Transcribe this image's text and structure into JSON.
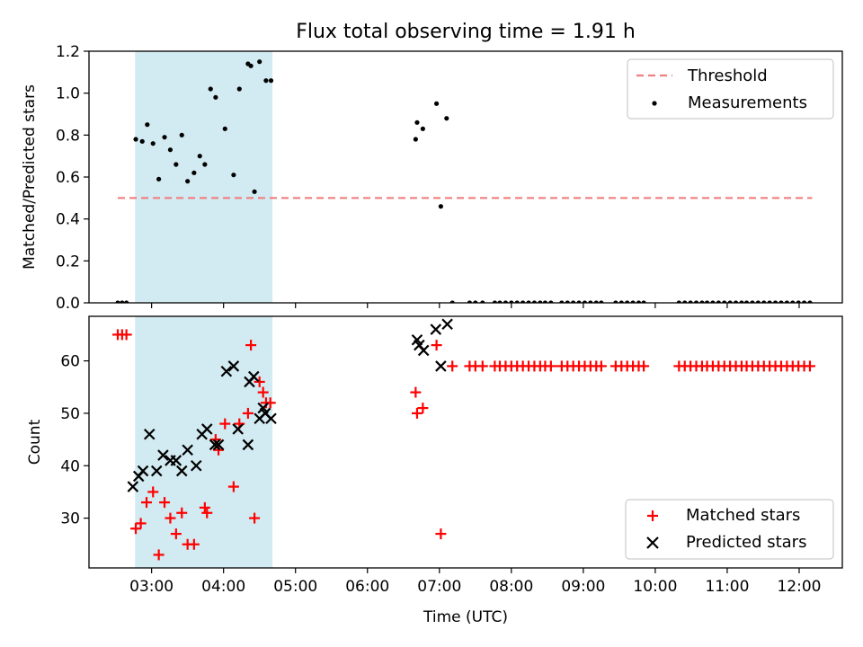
{
  "title": "Flux total observing time = 1.91 h",
  "xlabel": "Time (UTC)",
  "colors": {
    "span": "#add8e6",
    "threshold": "#f08080",
    "measurement": "#000000",
    "matched": "#ff0000",
    "predicted": "#000000"
  },
  "chart_data": [
    {
      "type": "scatter",
      "ylabel": "Matched/Predicted stars",
      "ylim": [
        0,
        1.2
      ],
      "yticks": [
        "0.0",
        "0.2",
        "0.4",
        "0.6",
        "0.8",
        "1.0",
        "1.2"
      ],
      "xlim_hours": [
        2.13,
        12.6
      ],
      "grid": false,
      "legend_position": "upper right",
      "shaded_span_hours": [
        2.77,
        4.68
      ],
      "threshold": {
        "name": "Threshold",
        "value": 0.5,
        "x_hours": [
          2.53,
          12.18
        ]
      },
      "series": [
        {
          "name": "Measurements",
          "x_hours": [
            2.53,
            2.59,
            2.65,
            2.78,
            2.87,
            2.94,
            3.02,
            3.1,
            3.18,
            3.26,
            3.34,
            3.42,
            3.5,
            3.59,
            3.67,
            3.74,
            3.82,
            3.89,
            4.02,
            4.14,
            4.22,
            4.34,
            4.38,
            4.43,
            4.5,
            4.59,
            4.66,
            6.67,
            6.69,
            6.77,
            6.96,
            7.02,
            7.1,
            7.18,
            7.42,
            7.5,
            7.6,
            7.77,
            7.84,
            7.92,
            8.0,
            8.08,
            8.16,
            8.24,
            8.32,
            8.4,
            8.47,
            8.55,
            8.7,
            8.78,
            8.86,
            8.94,
            9.02,
            9.1,
            9.18,
            9.25,
            9.45,
            9.53,
            9.61,
            9.69,
            9.77,
            9.84,
            10.33,
            10.41,
            10.49,
            10.57,
            10.65,
            10.72,
            10.8,
            10.88,
            10.96,
            11.04,
            11.12,
            11.2,
            11.27,
            11.35,
            11.43,
            11.51,
            11.59,
            11.67,
            11.75,
            11.83,
            11.91,
            11.99,
            12.07,
            12.15
          ],
          "y": [
            0,
            0,
            0,
            0.78,
            0.77,
            0.85,
            0.76,
            0.59,
            0.79,
            0.73,
            0.66,
            0.8,
            0.58,
            0.62,
            0.7,
            0.66,
            1.02,
            0.98,
            0.83,
            0.61,
            1.02,
            1.14,
            1.13,
            0.53,
            1.15,
            1.06,
            1.06,
            0.78,
            0.86,
            0.83,
            0.95,
            0.46,
            0.88,
            0,
            0,
            0,
            0,
            0,
            0,
            0,
            0,
            0,
            0,
            0,
            0,
            0,
            0,
            0,
            0,
            0,
            0,
            0,
            0,
            0,
            0,
            0,
            0,
            0,
            0,
            0,
            0,
            0,
            0,
            0,
            0,
            0,
            0,
            0,
            0,
            0,
            0,
            0,
            0,
            0,
            0,
            0,
            0,
            0,
            0,
            0,
            0,
            0,
            0,
            0,
            0,
            0
          ]
        }
      ]
    },
    {
      "type": "scatter",
      "ylabel": "Count",
      "ylim": [
        20.5,
        68.5
      ],
      "yticks": [
        "30",
        "40",
        "50",
        "60"
      ],
      "xticks": [
        "03:00",
        "04:00",
        "05:00",
        "06:00",
        "07:00",
        "08:00",
        "09:00",
        "10:00",
        "11:00",
        "12:00"
      ],
      "xlim_hours": [
        2.13,
        12.6
      ],
      "grid": false,
      "legend_position": "lower right",
      "shaded_span_hours": [
        2.77,
        4.68
      ],
      "series": [
        {
          "name": "Matched stars",
          "marker": "+",
          "x_hours": [
            2.53,
            2.59,
            2.65,
            2.78,
            2.85,
            2.93,
            3.02,
            3.1,
            3.18,
            3.26,
            3.34,
            3.42,
            3.5,
            3.59,
            3.74,
            3.77,
            3.89,
            3.93,
            4.02,
            4.14,
            4.22,
            4.34,
            4.38,
            4.43,
            4.5,
            4.55,
            4.59,
            4.65,
            6.67,
            6.69,
            6.77,
            6.96,
            7.02,
            7.18,
            7.42,
            7.5,
            7.6,
            7.77,
            7.84,
            7.92,
            8.0,
            8.08,
            8.16,
            8.24,
            8.32,
            8.4,
            8.47,
            8.55,
            8.7,
            8.78,
            8.86,
            8.94,
            9.02,
            9.1,
            9.18,
            9.25,
            9.45,
            9.53,
            9.61,
            9.69,
            9.77,
            9.84,
            10.33,
            10.41,
            10.49,
            10.57,
            10.65,
            10.72,
            10.8,
            10.88,
            10.96,
            11.04,
            11.12,
            11.2,
            11.27,
            11.35,
            11.43,
            11.51,
            11.59,
            11.67,
            11.75,
            11.83,
            11.91,
            11.99,
            12.07,
            12.15
          ],
          "y": [
            65,
            65,
            65,
            28,
            29,
            33,
            35,
            23,
            33,
            30,
            27,
            31,
            25,
            25,
            32,
            31,
            45,
            43,
            48,
            36,
            48,
            50,
            63,
            30,
            56,
            54,
            52,
            52,
            54,
            50,
            51,
            63,
            27,
            59,
            59,
            59,
            59,
            59,
            59,
            59,
            59,
            59,
            59,
            59,
            59,
            59,
            59,
            59,
            59,
            59,
            59,
            59,
            59,
            59,
            59,
            59,
            59,
            59,
            59,
            59,
            59,
            59,
            59,
            59,
            59,
            59,
            59,
            59,
            59,
            59,
            59,
            59,
            59,
            59,
            59,
            59,
            59,
            59,
            59,
            59,
            59,
            59,
            59,
            59,
            59,
            59
          ]
        },
        {
          "name": "Predicted stars",
          "marker": "x",
          "x_hours": [
            2.74,
            2.82,
            2.88,
            2.97,
            3.07,
            3.16,
            3.26,
            3.34,
            3.42,
            3.5,
            3.62,
            3.7,
            3.77,
            3.88,
            3.93,
            4.04,
            4.14,
            4.2,
            4.34,
            4.36,
            4.42,
            4.5,
            4.55,
            4.58,
            4.66,
            6.69,
            6.72,
            6.78,
            6.95,
            7.02,
            7.11
          ],
          "y": [
            36,
            38,
            39,
            46,
            39,
            42,
            41,
            41,
            39,
            43,
            40,
            46,
            47,
            44,
            44,
            58,
            59,
            47,
            44,
            56,
            57,
            49,
            51,
            50,
            49,
            64,
            63,
            62,
            66,
            59,
            67
          ]
        }
      ]
    }
  ]
}
